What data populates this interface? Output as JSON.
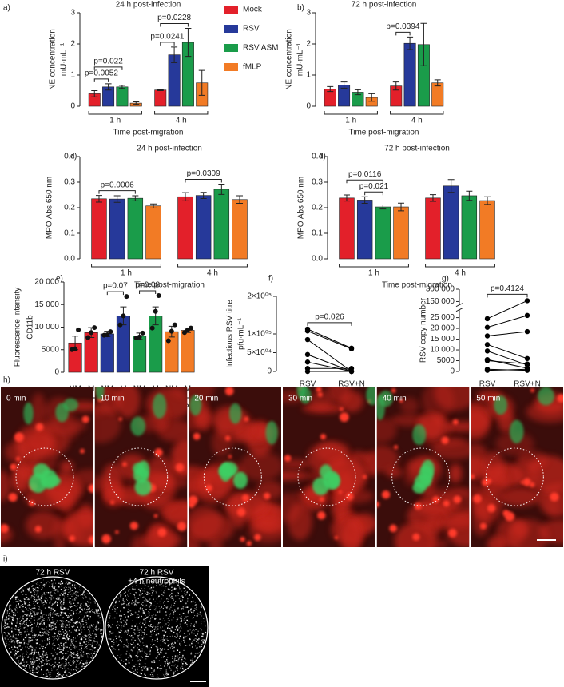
{
  "chart_data": [
    {
      "type": "bar",
      "panel": "a)",
      "title": "24 h post-infection",
      "ylabel": [
        "NE concentration",
        "mU·mL⁻¹"
      ],
      "xlabel": "Time post-migration",
      "categories": [
        "1 h",
        "4 h"
      ],
      "series": [
        {
          "name": "Mock",
          "color": "#e3202a",
          "values": [
            0.4,
            0.52
          ],
          "errors": [
            0.1,
            0.02
          ]
        },
        {
          "name": "RSV",
          "color": "#26399a",
          "values": [
            0.62,
            1.65
          ],
          "errors": [
            0.1,
            0.25
          ]
        },
        {
          "name": "RSV ASM",
          "color": "#1a9c4a",
          "values": [
            0.62,
            2.05
          ],
          "errors": [
            0.05,
            0.45
          ]
        },
        {
          "name": "fMLP",
          "color": "#f27b25",
          "values": [
            0.1,
            0.75
          ],
          "errors": [
            0.04,
            0.4
          ]
        }
      ],
      "ylim": [
        0,
        3
      ],
      "yticks": [
        0,
        1,
        2,
        3
      ],
      "legend": true,
      "annotations": [
        {
          "text": "p=0.0052",
          "between": [
            [
              0,
              0
            ],
            [
              0,
              1
            ]
          ]
        },
        {
          "text": "p=0.022",
          "between": [
            [
              0,
              0
            ],
            [
              0,
              2
            ]
          ]
        },
        {
          "text": "p=0.0241",
          "between": [
            [
              1,
              0
            ],
            [
              1,
              1
            ]
          ]
        },
        {
          "text": "p=0.0228",
          "between": [
            [
              1,
              0
            ],
            [
              1,
              2
            ]
          ]
        }
      ]
    },
    {
      "type": "bar",
      "panel": "b)",
      "title": "72 h post-infection",
      "ylabel": [
        "NE concentration",
        "mU·mL⁻¹"
      ],
      "xlabel": "Time post-migration",
      "categories": [
        "1 h",
        "4 h"
      ],
      "series": [
        {
          "color": "#e3202a",
          "values": [
            0.55,
            0.65
          ],
          "errors": [
            0.08,
            0.13
          ]
        },
        {
          "color": "#26399a",
          "values": [
            0.68,
            2.02
          ],
          "errors": [
            0.1,
            0.2
          ]
        },
        {
          "color": "#1a9c4a",
          "values": [
            0.45,
            1.98
          ],
          "errors": [
            0.08,
            0.68
          ]
        },
        {
          "color": "#f27b25",
          "values": [
            0.28,
            0.75
          ],
          "errors": [
            0.12,
            0.1
          ]
        }
      ],
      "ylim": [
        0,
        3
      ],
      "yticks": [
        0,
        1,
        2,
        3
      ],
      "legend": false,
      "annotations": [
        {
          "text": "p=0.0394",
          "between": [
            [
              1,
              0
            ],
            [
              1,
              1
            ]
          ]
        }
      ]
    },
    {
      "type": "bar",
      "panel": "c)",
      "title": "24 h post-infection",
      "ylabel": [
        "MPO Abs 650 nm"
      ],
      "xlabel": "Time post-migration",
      "categories": [
        "1 h",
        "4 h"
      ],
      "series": [
        {
          "color": "#e3202a",
          "values": [
            0.235,
            0.243
          ],
          "errors": [
            0.013,
            0.016
          ]
        },
        {
          "color": "#26399a",
          "values": [
            0.234,
            0.248
          ],
          "errors": [
            0.013,
            0.012
          ]
        },
        {
          "color": "#1a9c4a",
          "values": [
            0.237,
            0.272
          ],
          "errors": [
            0.01,
            0.02
          ]
        },
        {
          "color": "#f27b25",
          "values": [
            0.207,
            0.232
          ],
          "errors": [
            0.008,
            0.015
          ]
        }
      ],
      "ylim": [
        0,
        0.4
      ],
      "yticks": [
        {
          "value": 0,
          "label": "0.0"
        },
        0.1,
        0.2,
        0.3,
        0.4
      ],
      "legend": false,
      "annotations": [
        {
          "text": "p=0.0006",
          "between": [
            [
              0,
              0
            ],
            [
              0,
              2
            ]
          ]
        },
        {
          "text": "p=0.0309",
          "between": [
            [
              1,
              0
            ],
            [
              1,
              2
            ]
          ]
        }
      ]
    },
    {
      "type": "bar",
      "panel": "d)",
      "title": "72 h post-infection",
      "ylabel": [
        "MPO Abs 650 nm"
      ],
      "xlabel": "Time post-migration",
      "categories": [
        "1 h",
        "4 h"
      ],
      "series": [
        {
          "color": "#e3202a",
          "values": [
            0.238,
            0.238
          ],
          "errors": [
            0.012,
            0.013
          ]
        },
        {
          "color": "#26399a",
          "values": [
            0.23,
            0.285
          ],
          "errors": [
            0.013,
            0.025
          ]
        },
        {
          "color": "#1a9c4a",
          "values": [
            0.203,
            0.247
          ],
          "errors": [
            0.008,
            0.018
          ]
        },
        {
          "color": "#f27b25",
          "values": [
            0.203,
            0.228
          ],
          "errors": [
            0.015,
            0.015
          ]
        }
      ],
      "ylim": [
        0,
        0.4
      ],
      "yticks": [
        {
          "value": 0,
          "label": "0.0"
        },
        0.1,
        0.2,
        0.3,
        0.4
      ],
      "legend": false,
      "annotations": [
        {
          "text": "p=0.021",
          "between": [
            [
              0,
              1
            ],
            [
              0,
              2
            ]
          ]
        },
        {
          "text": "p=0.0116",
          "between": [
            [
              0,
              0
            ],
            [
              0,
              2
            ]
          ]
        }
      ]
    },
    {
      "type": "bar",
      "panel": "e)",
      "ylabel": [
        "Fluorescence intensity",
        "CD11b"
      ],
      "categories": [
        "NM",
        "M",
        "NM",
        "M",
        "NM",
        "M",
        "NM",
        "M"
      ],
      "groups": [
        "Mock",
        "RSV",
        "RSV ASM",
        "fMLP"
      ],
      "colors": [
        "#e3202a",
        "#e3202a",
        "#26399a",
        "#26399a",
        "#1a9c4a",
        "#1a9c4a",
        "#f27b25",
        "#f27b25"
      ],
      "values": [
        6500,
        8800,
        8500,
        12500,
        8000,
        12500,
        9000,
        9300
      ],
      "errors": [
        1500,
        1100,
        600,
        2000,
        700,
        2000,
        1200,
        500
      ],
      "points": [
        [
          5000,
          5200,
          9400
        ],
        [
          7700,
          8800,
          9900
        ],
        [
          8200,
          8300,
          9000
        ],
        [
          10500,
          12500,
          16800
        ],
        [
          7600,
          7800,
          8700
        ],
        [
          9800,
          13500,
          17000
        ],
        [
          7000,
          9100,
          10500
        ],
        [
          8800,
          9400,
          9800
        ]
      ],
      "ylim": [
        0,
        20000
      ],
      "yticks": [
        0,
        5000,
        {
          "value": 10000,
          "label": "10 000"
        },
        {
          "value": 15000,
          "label": "15 000"
        },
        {
          "value": 20000,
          "label": "20 000"
        }
      ],
      "annotations": [
        {
          "text": "p=0.07",
          "between": [
            2,
            3
          ]
        },
        {
          "text": "p=0.08",
          "between": [
            4,
            5
          ]
        }
      ]
    },
    {
      "type": "line",
      "panel": "f)",
      "ylabel": [
        "Infectious RSV titre",
        "pfu·mL⁻¹"
      ],
      "categories": [
        "RSV",
        "RSV+N"
      ],
      "color": "#000000",
      "series": [
        {
          "values": [
            113000,
            62000
          ]
        },
        {
          "values": [
            108000,
            60000
          ]
        },
        {
          "values": [
            85000,
            0
          ]
        },
        {
          "values": [
            45000,
            0
          ]
        },
        {
          "values": [
            25000,
            0
          ]
        },
        {
          "values": [
            8000,
            8000
          ]
        },
        {
          "values": [
            0,
            0
          ]
        }
      ],
      "ylim": [
        0,
        200000
      ],
      "yticks": [
        0,
        {
          "value": 50000,
          "label": "5×10⁰⁴"
        },
        {
          "value": 100000,
          "label": "1×10⁰⁵"
        },
        {
          "value": 200000,
          "label": "2×10⁰⁵"
        }
      ],
      "annotations": [
        {
          "text": "p=0.026",
          "between": [
            0,
            1
          ]
        }
      ]
    },
    {
      "type": "line",
      "panel": "g)",
      "ylabel": [
        "RSV copy number"
      ],
      "categories": [
        "RSV",
        "RSV+N"
      ],
      "color": "#000000",
      "series": [
        {
          "values": [
            24500,
            160000
          ]
        },
        {
          "values": [
            20500,
            26000
          ]
        },
        {
          "values": [
            16500,
            18500
          ]
        },
        {
          "values": [
            12500,
            6000
          ]
        },
        {
          "values": [
            9500,
            3000
          ]
        },
        {
          "values": [
            5500,
            1500
          ]
        },
        {
          "values": [
            5000,
            3500
          ]
        },
        {
          "values": [
            1000,
            500
          ]
        },
        {
          "values": [
            500,
            1000
          ]
        }
      ],
      "ylim": [
        0,
        300000
      ],
      "ybreak": [
        27500,
        140000
      ],
      "yticks": [
        0,
        5000,
        {
          "value": 10000,
          "label": "10 000"
        },
        {
          "value": 15000,
          "label": "15 000"
        },
        {
          "value": 20000,
          "label": "20 000"
        },
        {
          "value": 25000,
          "label": "25 000"
        },
        {
          "value": 150000,
          "label": "150 000"
        },
        {
          "value": 300000,
          "label": "300 000"
        }
      ],
      "annotations": [
        {
          "text": "p=0.4124",
          "between": [
            0,
            1
          ]
        }
      ]
    }
  ],
  "figure": {
    "h": {
      "panel": "h)",
      "frames": [
        "0 min",
        "10 min",
        "20 min",
        "30 min",
        "40 min",
        "50 min"
      ]
    },
    "i": {
      "panel": "i)",
      "wells": [
        [
          "72 h RSV"
        ],
        [
          "72 h RSV",
          "+4 h neutrophils"
        ]
      ]
    }
  }
}
